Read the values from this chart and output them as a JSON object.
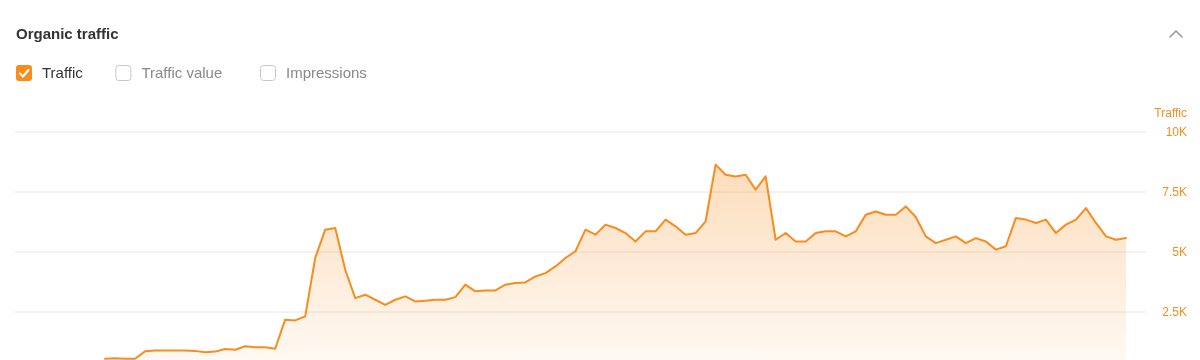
{
  "chart_data": {
    "type": "area",
    "title": "Organic traffic",
    "ylabel": "Traffic",
    "categories": [
      null,
      null,
      null,
      null,
      null,
      null,
      null,
      null,
      null,
      null,
      null,
      null,
      null,
      null,
      null,
      null,
      null,
      null,
      null,
      null,
      null,
      null,
      null,
      null,
      null,
      null,
      null,
      null,
      null,
      null,
      null,
      null,
      null,
      null,
      null,
      null,
      null,
      null,
      null,
      null,
      null,
      null,
      null,
      null,
      null,
      null,
      null,
      null,
      null,
      null,
      null,
      null,
      null,
      null,
      null,
      null,
      null,
      null,
      null,
      null,
      null,
      null,
      null,
      null,
      null,
      null,
      null,
      null,
      null,
      null,
      null,
      null,
      null,
      null,
      null,
      null,
      null,
      null,
      null,
      null,
      null,
      null,
      null,
      null,
      null,
      null,
      null,
      null,
      null,
      null,
      null,
      null,
      null,
      null,
      null,
      null,
      null,
      null,
      null,
      null,
      null,
      null,
      null
    ],
    "series": [
      {
        "name": "Traffic",
        "color": "#f68d1e",
        "values": [
          550,
          570,
          550,
          550,
          860,
          900,
          900,
          900,
          900,
          880,
          820,
          850,
          960,
          930,
          1070,
          1030,
          1030,
          970,
          2180,
          2150,
          2320,
          4750,
          5930,
          6000,
          4260,
          3080,
          3220,
          3010,
          2800,
          3010,
          3150,
          2940,
          2970,
          3010,
          3010,
          3120,
          3640,
          3360,
          3400,
          3400,
          3640,
          3710,
          3730,
          3980,
          4120,
          4400,
          4750,
          5030,
          5930,
          5720,
          6140,
          6000,
          5790,
          5440,
          5860,
          5860,
          6350,
          6070,
          5720,
          5790,
          6280,
          8640,
          8220,
          8150,
          8220,
          7600,
          8150,
          5510,
          5790,
          5440,
          5440,
          5790,
          5860,
          5860,
          5650,
          5860,
          6550,
          6690,
          6550,
          6550,
          6900,
          6460,
          5650,
          5370,
          5510,
          5650,
          5370,
          5580,
          5440,
          5100,
          5240,
          6420,
          6350,
          6210,
          6350,
          5790,
          6140,
          6350,
          6830,
          6210,
          5650,
          5510,
          5580
        ]
      }
    ],
    "ylim": [
      0,
      10000
    ],
    "yticks": [
      {
        "value": 2500,
        "label": "2.5K"
      },
      {
        "value": 5000,
        "label": "5K"
      },
      {
        "value": 7500,
        "label": "7.5K"
      },
      {
        "value": 10000,
        "label": "10K"
      }
    ],
    "grid": "y",
    "legend": "top left",
    "annotations": [
      "Traffic value",
      "Impressions"
    ]
  }
}
